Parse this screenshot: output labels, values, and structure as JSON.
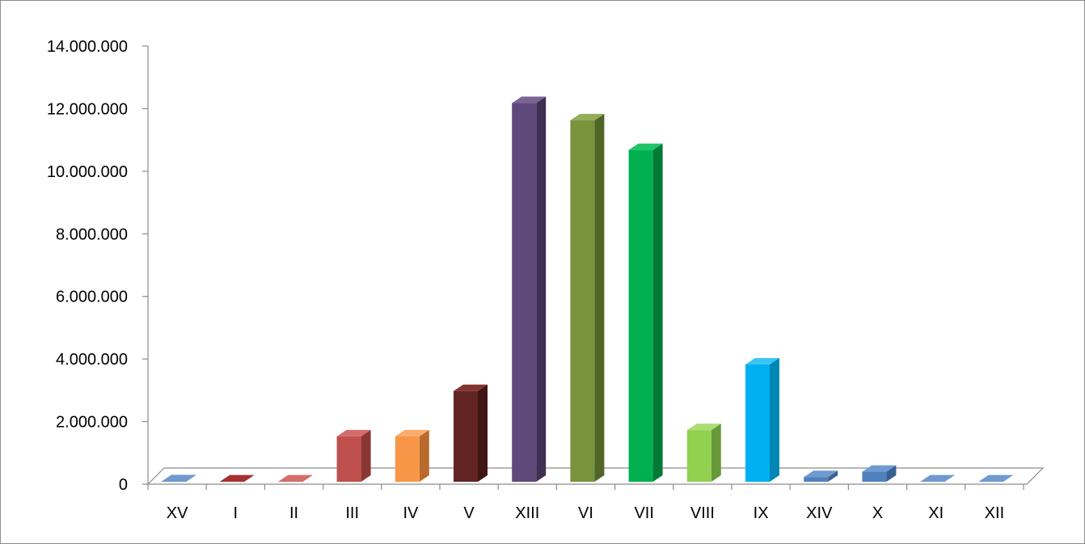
{
  "chart_data": {
    "type": "bar",
    "style": "3d-column",
    "categories": [
      "XV",
      "I",
      "II",
      "III",
      "IV",
      "V",
      "XIII",
      "VI",
      "VII",
      "VIII",
      "IX",
      "XIV",
      "X",
      "XI",
      "XII"
    ],
    "values": [
      15000,
      10000,
      10000,
      1450000,
      1450000,
      2900000,
      12100000,
      11550000,
      10600000,
      1650000,
      3750000,
      150000,
      320000,
      10000,
      10000
    ],
    "colors": [
      "#4f81bd",
      "#8b1a1a",
      "#c0504d",
      "#c0504d",
      "#f79646",
      "#632523",
      "#5f497a",
      "#77933c",
      "#00b050",
      "#92d050",
      "#00b0f0",
      "#4f81bd",
      "#4f81bd",
      "#4f81bd",
      "#4f81bd"
    ],
    "side_colors": [
      "#3a6091",
      "#5e1111",
      "#8a3633",
      "#8a3633",
      "#b86a2c",
      "#3f1615",
      "#3f2f52",
      "#506526",
      "#007a37",
      "#67993a",
      "#0086b5",
      "#3a6091",
      "#3a6091",
      "#3a6091",
      "#3a6091"
    ],
    "top_colors": [
      "#6f9ad0",
      "#a53030",
      "#d46c69",
      "#d46c69",
      "#f9ac6d",
      "#82352f",
      "#7b6396",
      "#94ad59",
      "#1fc468",
      "#acdd71",
      "#3cc4f5",
      "#6f9ad0",
      "#6f9ad0",
      "#6f9ad0",
      "#6f9ad0"
    ],
    "y_ticks": [
      "0",
      "2.000.000",
      "4.000.000",
      "6.000.000",
      "8.000.000",
      "10.000.000",
      "12.000.000",
      "14.000.000"
    ],
    "ylim": [
      0,
      14000000
    ],
    "title": "",
    "xlabel": "",
    "ylabel": "",
    "grid": false,
    "legend": "none"
  }
}
